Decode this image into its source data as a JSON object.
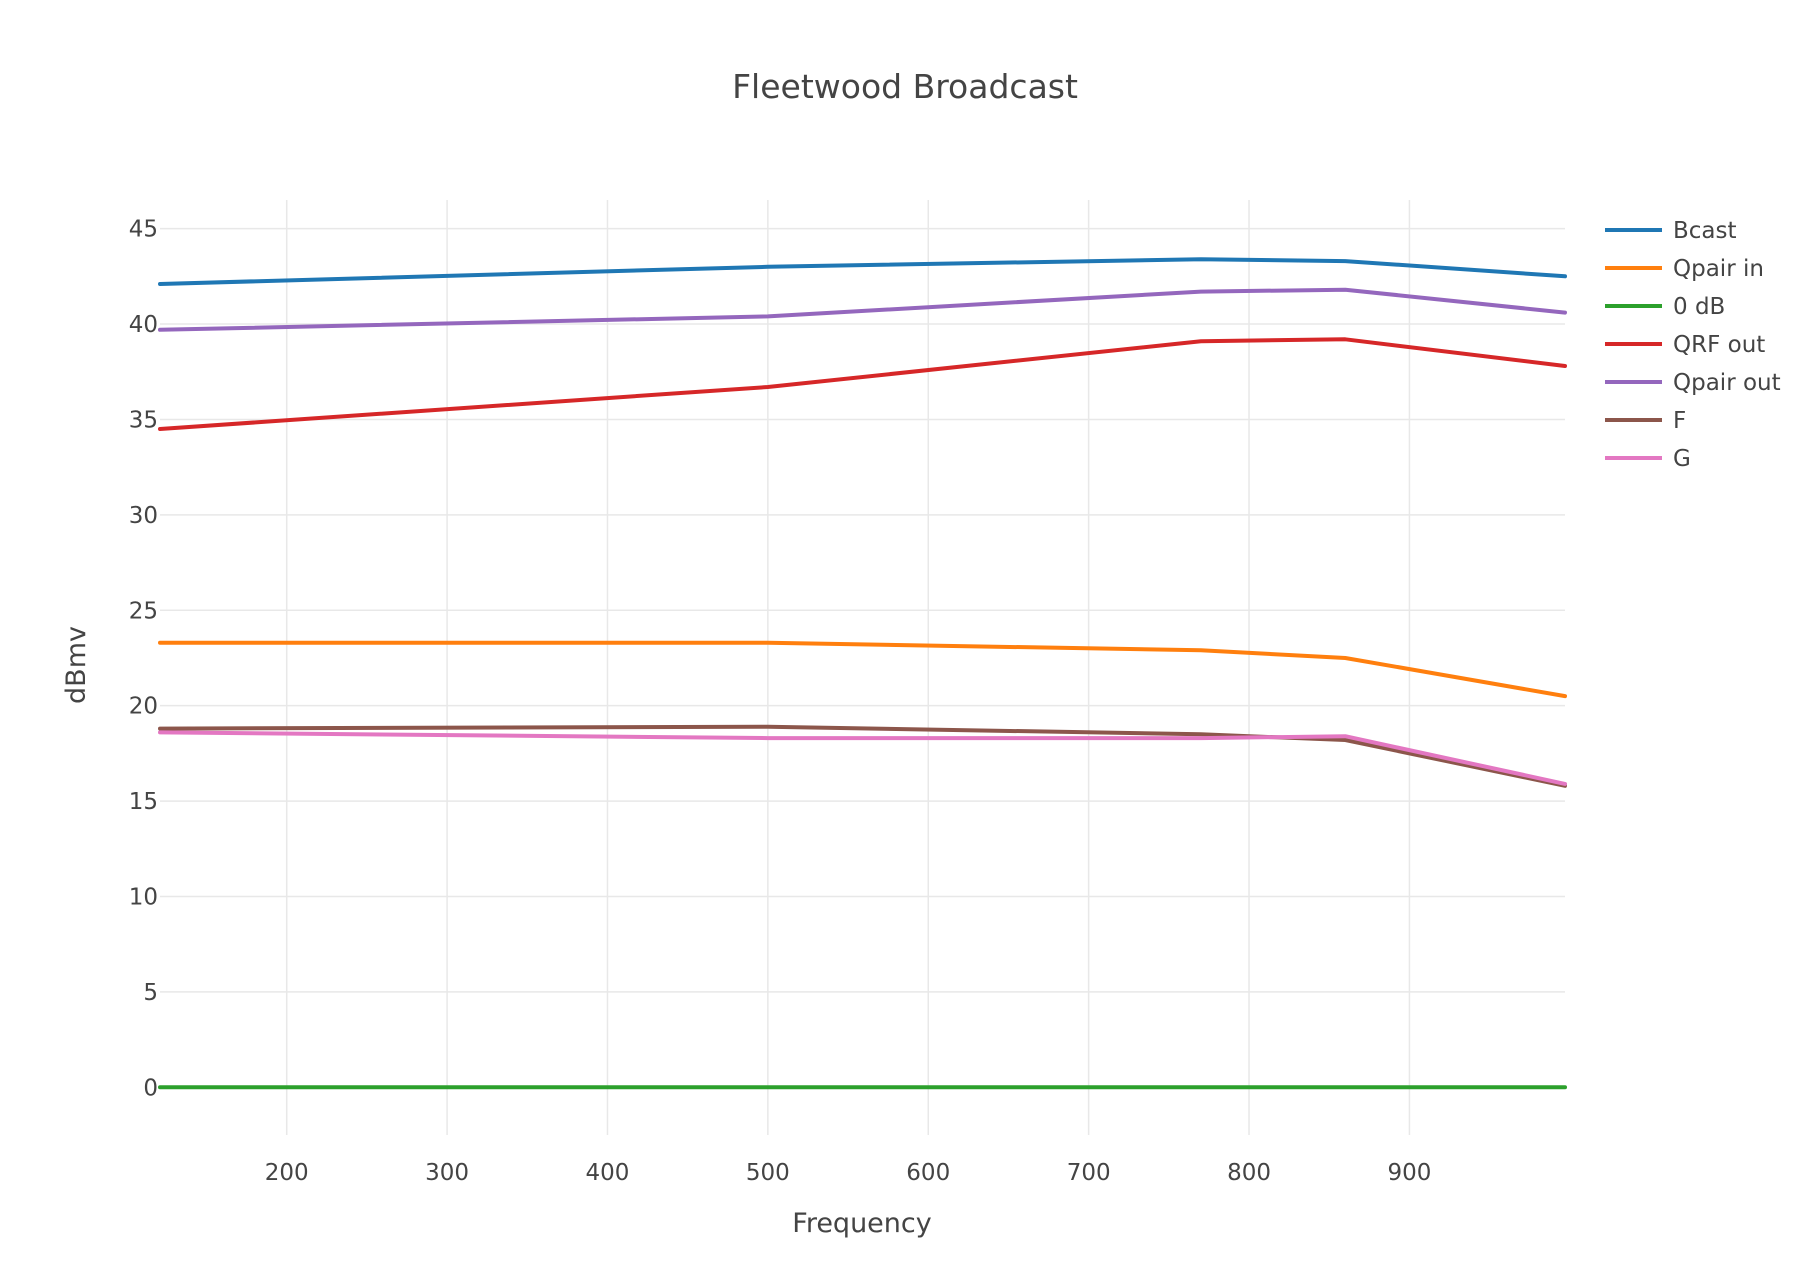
{
  "chart_data": {
    "type": "line",
    "title": "Fleetwood Broadcast",
    "xlabel": "Frequency",
    "ylabel": "dBmv",
    "xlim": [
      121,
      997
    ],
    "ylim": [
      -2.5,
      46.5
    ],
    "x_ticks": [
      200,
      300,
      400,
      500,
      600,
      700,
      800,
      900
    ],
    "y_ticks": [
      0,
      5,
      10,
      15,
      20,
      25,
      30,
      35,
      40,
      45
    ],
    "grid": true,
    "legend_position": "top-right",
    "x": [
      121,
      500,
      770,
      860,
      997
    ],
    "series": [
      {
        "name": "Bcast",
        "color": "#1f77b4",
        "values": [
          42.1,
          43.0,
          43.4,
          43.3,
          42.5
        ]
      },
      {
        "name": "Qpair in",
        "color": "#ff7f0e",
        "values": [
          23.3,
          23.3,
          22.9,
          22.5,
          20.5
        ]
      },
      {
        "name": "0 dB",
        "color": "#2ca02c",
        "values": [
          0,
          0,
          0,
          0,
          0
        ]
      },
      {
        "name": "QRF out",
        "color": "#d62728",
        "values": [
          34.5,
          36.7,
          39.1,
          39.2,
          37.8
        ]
      },
      {
        "name": "Qpair out",
        "color": "#9467bd",
        "values": [
          39.7,
          40.4,
          41.7,
          41.8,
          40.6
        ]
      },
      {
        "name": "F",
        "color": "#8c564b",
        "values": [
          18.8,
          18.9,
          18.5,
          18.2,
          15.8
        ]
      },
      {
        "name": "G",
        "color": "#e377c2",
        "values": [
          18.6,
          18.3,
          18.3,
          18.4,
          15.9
        ]
      }
    ]
  }
}
